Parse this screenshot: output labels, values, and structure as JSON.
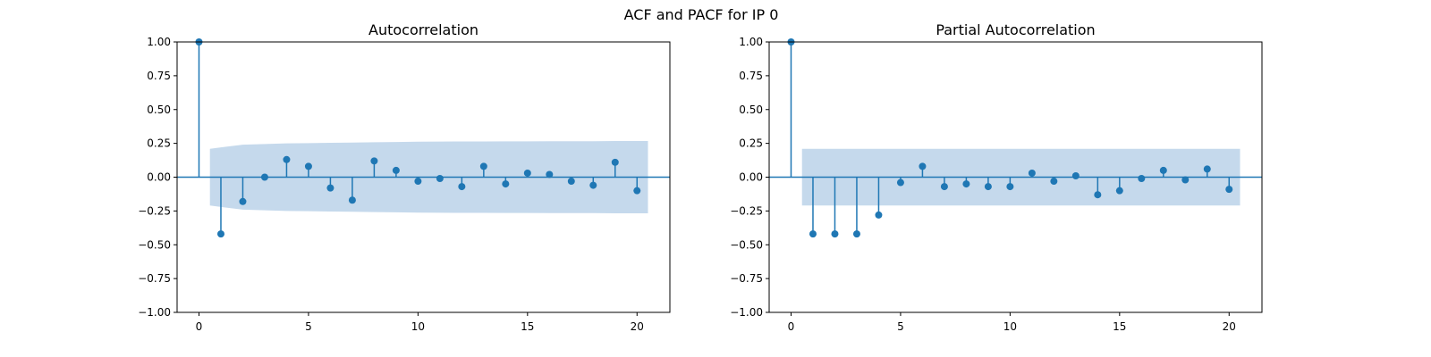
{
  "figure": {
    "title": "ACF and PACF for IP 0"
  },
  "chart_data": [
    {
      "type": "stem",
      "title": "Autocorrelation",
      "xlabel": "",
      "ylabel": "",
      "xlim": [
        -1,
        21.5
      ],
      "ylim": [
        -1.0,
        1.0
      ],
      "x_ticks": [
        0,
        5,
        10,
        15,
        20
      ],
      "y_ticks": [
        -1.0,
        -0.75,
        -0.5,
        -0.25,
        0.0,
        0.25,
        0.5,
        0.75,
        1.0
      ],
      "y_tick_labels": [
        "−1.00",
        "−0.75",
        "−0.50",
        "−0.25",
        "0.00",
        "0.25",
        "0.50",
        "0.75",
        "1.00"
      ],
      "lags": [
        0,
        1,
        2,
        3,
        4,
        5,
        6,
        7,
        8,
        9,
        10,
        11,
        12,
        13,
        14,
        15,
        16,
        17,
        18,
        19,
        20
      ],
      "values": [
        1.0,
        -0.42,
        -0.18,
        0.0,
        0.13,
        0.08,
        -0.08,
        -0.17,
        0.12,
        0.05,
        -0.03,
        -0.01,
        -0.07,
        0.08,
        -0.05,
        0.03,
        0.02,
        -0.03,
        -0.06,
        0.11,
        -0.1
      ],
      "confidence_band": {
        "lags": [
          0.5,
          1,
          2,
          3,
          4,
          5,
          6,
          7,
          8,
          9,
          10,
          11,
          12,
          13,
          14,
          15,
          16,
          17,
          18,
          19,
          20,
          20.5
        ],
        "upper": [
          0.21,
          0.22,
          0.24,
          0.245,
          0.25,
          0.252,
          0.254,
          0.256,
          0.258,
          0.26,
          0.262,
          0.263,
          0.264,
          0.264,
          0.265,
          0.265,
          0.266,
          0.266,
          0.266,
          0.267,
          0.267,
          0.267
        ]
      },
      "grid": false,
      "colors": {
        "stem": "#1f77b4",
        "band": "#c5d9ec",
        "zero_line": "#1f77b4"
      }
    },
    {
      "type": "stem",
      "title": "Partial Autocorrelation",
      "xlabel": "",
      "ylabel": "",
      "xlim": [
        -1,
        21.5
      ],
      "ylim": [
        -1.0,
        1.0
      ],
      "x_ticks": [
        0,
        5,
        10,
        15,
        20
      ],
      "y_ticks": [
        -1.0,
        -0.75,
        -0.5,
        -0.25,
        0.0,
        0.25,
        0.5,
        0.75,
        1.0
      ],
      "y_tick_labels": [
        "−1.00",
        "−0.75",
        "−0.50",
        "−0.25",
        "0.00",
        "0.25",
        "0.50",
        "0.75",
        "1.00"
      ],
      "lags": [
        0,
        1,
        2,
        3,
        4,
        5,
        6,
        7,
        8,
        9,
        10,
        11,
        12,
        13,
        14,
        15,
        16,
        17,
        18,
        19,
        20
      ],
      "values": [
        1.0,
        -0.42,
        -0.42,
        -0.42,
        -0.28,
        -0.04,
        0.08,
        -0.07,
        -0.05,
        -0.07,
        -0.07,
        0.03,
        -0.03,
        0.01,
        -0.13,
        -0.1,
        -0.01,
        0.05,
        -0.02,
        0.06,
        -0.09
      ],
      "confidence_band": {
        "lags": [
          0.5,
          20.5
        ],
        "upper": [
          0.21,
          0.21
        ]
      },
      "grid": false,
      "colors": {
        "stem": "#1f77b4",
        "band": "#c5d9ec",
        "zero_line": "#1f77b4"
      }
    }
  ]
}
